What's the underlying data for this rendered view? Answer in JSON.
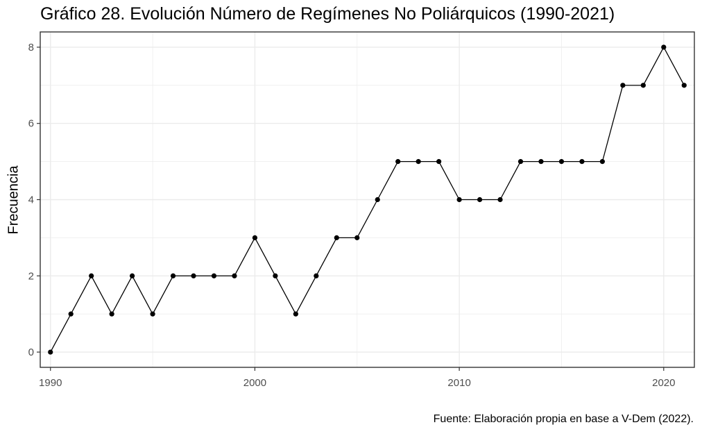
{
  "chart_data": {
    "type": "line",
    "title": "Gráfico 28. Evolución Número de Regímenes No Poliárquicos (1990-2021)",
    "xlabel": "",
    "ylabel": "Frecuencia",
    "caption": "Fuente: Elaboración propia en base a V-Dem (2022).",
    "x": [
      1990,
      1991,
      1992,
      1993,
      1994,
      1995,
      1996,
      1997,
      1998,
      1999,
      2000,
      2001,
      2002,
      2003,
      2004,
      2005,
      2006,
      2007,
      2008,
      2009,
      2010,
      2011,
      2012,
      2013,
      2014,
      2015,
      2016,
      2017,
      2018,
      2019,
      2020,
      2021
    ],
    "values": [
      0,
      1,
      2,
      1,
      2,
      1,
      2,
      2,
      2,
      2,
      3,
      2,
      1,
      2,
      3,
      3,
      4,
      5,
      5,
      5,
      4,
      4,
      4,
      5,
      5,
      5,
      5,
      5,
      7,
      7,
      8,
      7
    ],
    "xlim": [
      1989.5,
      2021.5
    ],
    "ylim": [
      -0.4,
      8.4
    ],
    "x_ticks": [
      1990,
      2000,
      2010,
      2020
    ],
    "y_ticks": [
      0,
      2,
      4,
      6,
      8
    ],
    "grid": true,
    "line_color": "#000000",
    "point_color": "#000000",
    "grid_color": "#ebebeb"
  }
}
